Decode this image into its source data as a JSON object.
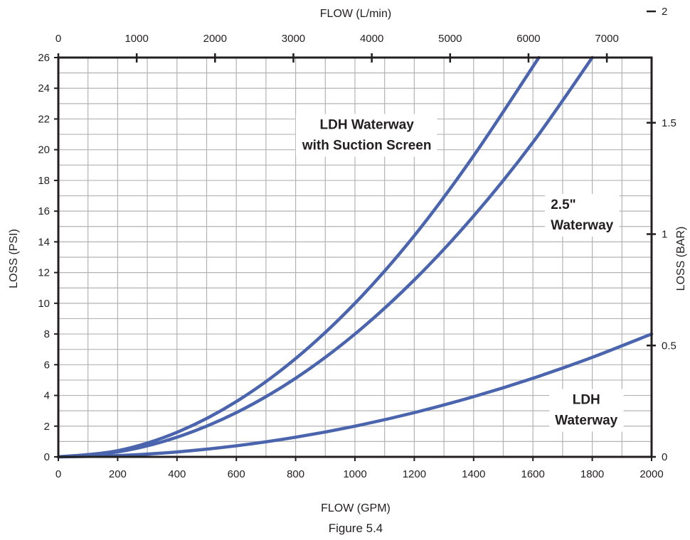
{
  "caption": "Figure 5.4",
  "chart_data": {
    "type": "line",
    "xlabel": "FLOW (GPM)",
    "ylabel": "LOSS (PSI)",
    "x2label": "FLOW (L/min)",
    "y2label": "LOSS (BAR)",
    "xlim": [
      0,
      2000
    ],
    "ylim": [
      0,
      26
    ],
    "x2lim": [
      0,
      7570.8
    ],
    "y2lim": [
      0,
      1.7927
    ],
    "x_ticks": [
      0,
      200,
      400,
      600,
      800,
      1000,
      1200,
      1400,
      1600,
      1800,
      2000
    ],
    "y_ticks": [
      0,
      2,
      4,
      6,
      8,
      10,
      12,
      14,
      16,
      18,
      20,
      22,
      24,
      26
    ],
    "x2_ticks": [
      0,
      1000,
      2000,
      3000,
      4000,
      5000,
      6000,
      7000
    ],
    "y2_ticks": [
      0,
      0.5,
      1,
      1.5,
      2
    ],
    "x2_tick_labels": [
      "0",
      "1000",
      "2000",
      "3000",
      "4000",
      "5000",
      "6000",
      "7000"
    ],
    "y2_tick_labels": [
      "0",
      "0.5",
      "1",
      "1.5",
      "2"
    ],
    "grid": true,
    "line_color": "#4a65ad",
    "series": [
      {
        "x": [
          0,
          200,
          400,
          600,
          800,
          1000,
          1200,
          1400,
          1620
        ],
        "y": [
          0,
          0.4,
          1.6,
          3.6,
          6.4,
          10.0,
          14.4,
          19.6,
          26.0
        ]
      },
      {
        "x": [
          0,
          200,
          400,
          600,
          800,
          1000,
          1200,
          1400,
          1600,
          1800
        ],
        "y": [
          0,
          0.32,
          1.28,
          2.88,
          5.12,
          8.0,
          11.52,
          15.68,
          20.48,
          26.0
        ]
      },
      {
        "x": [
          0,
          200,
          400,
          600,
          800,
          1000,
          1200,
          1400,
          1600,
          1800,
          2000
        ],
        "y": [
          0,
          0.08,
          0.32,
          0.72,
          1.28,
          2.0,
          2.88,
          3.92,
          5.12,
          6.48,
          8.0
        ]
      }
    ],
    "annotations": [
      {
        "lines": [
          "LDH Waterway",
          "with Suction Screen"
        ],
        "x": 1040,
        "y": 21.0
      },
      {
        "lines": [
          "2.5\"",
          "Waterway"
        ],
        "x": 1660,
        "y": 15.8,
        "align": "left"
      },
      {
        "lines": [
          "LDH",
          "Waterway"
        ],
        "x": 1780,
        "y": 3.1
      }
    ]
  }
}
